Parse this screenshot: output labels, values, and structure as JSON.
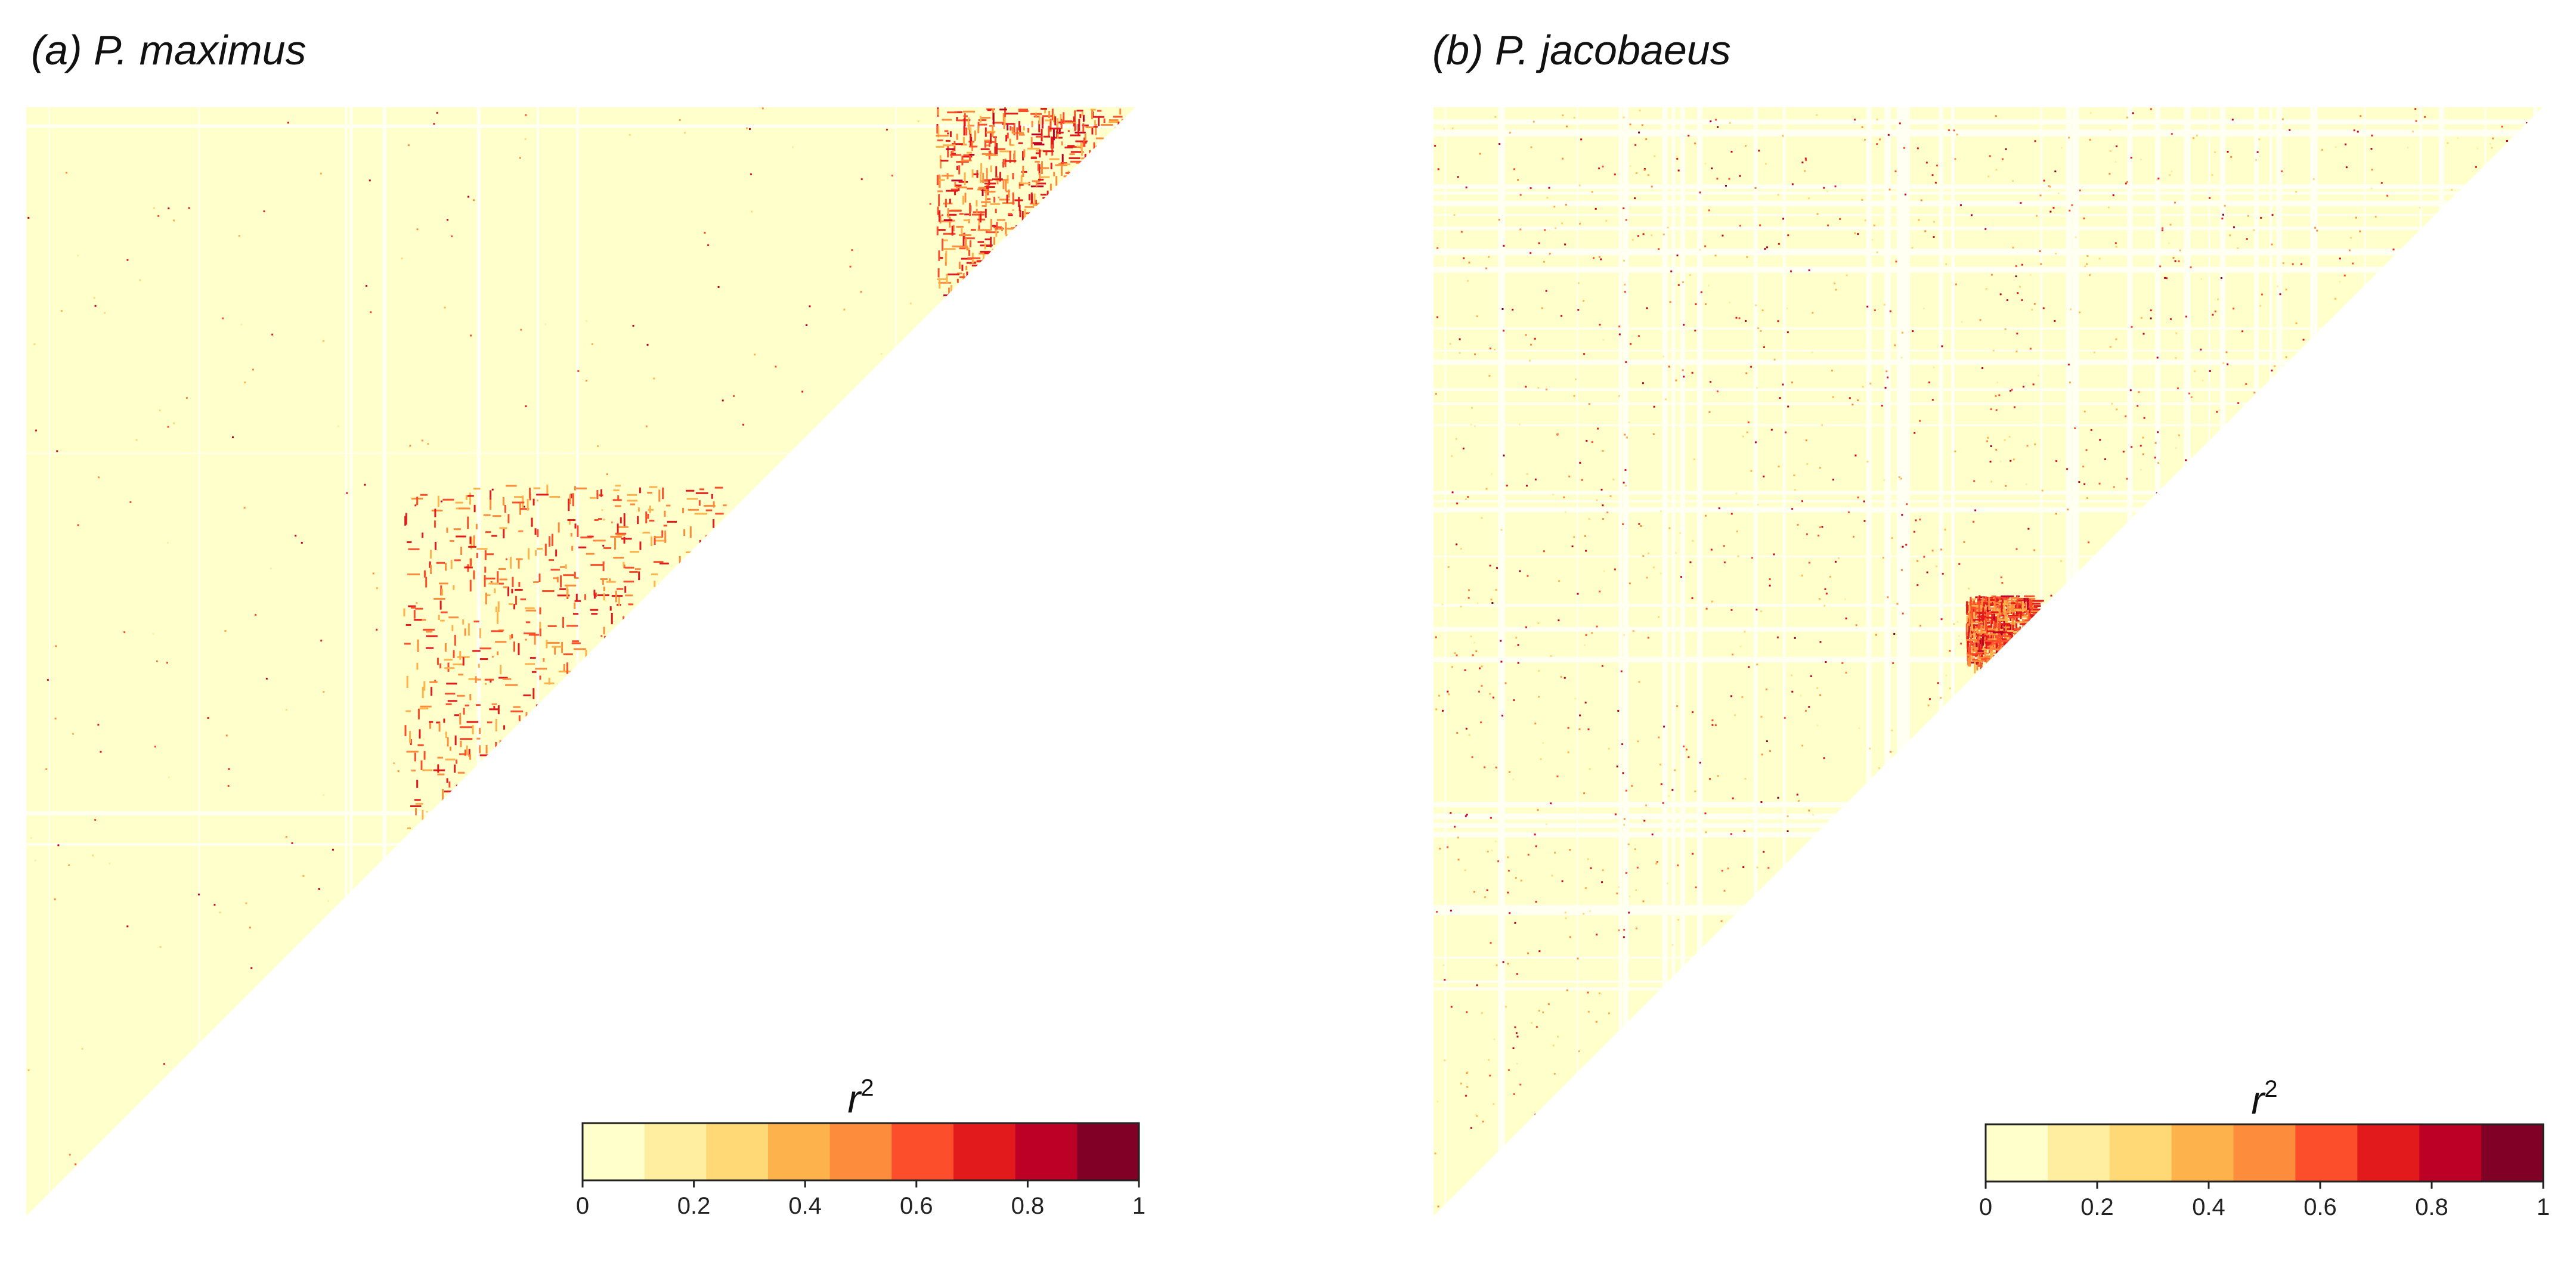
{
  "panels": {
    "a": {
      "title": "(a) P. maximus"
    },
    "b": {
      "title": "(b) P. jacobaeus"
    }
  },
  "colorbar": {
    "title": "r",
    "superscript": "2",
    "ticks": [
      "0",
      "0.2",
      "0.4",
      "0.6",
      "0.8",
      "1"
    ],
    "colors": [
      "#FFFFCC",
      "#FFEDA0",
      "#FED976",
      "#FEB24C",
      "#FD8D3C",
      "#FC4E2A",
      "#E31A1C",
      "#BD0026",
      "#800026"
    ]
  },
  "chart_data": [
    {
      "type": "heatmap",
      "shape": "upper-triangular",
      "title": "(a) P. maximus",
      "colorbar_title": "r²",
      "range": [
        0,
        1
      ],
      "ticks": [
        0,
        0.2,
        0.4,
        0.6,
        0.8,
        1
      ],
      "background_level": 0.05,
      "hotspots": [
        {
          "row_range": [
            0.0,
            0.17
          ],
          "col_range": [
            0.82,
            1.0
          ],
          "level": 0.7
        },
        {
          "row_range": [
            0.34,
            0.66
          ],
          "col_range": [
            0.34,
            0.64
          ],
          "level": 0.65
        }
      ]
    },
    {
      "type": "heatmap",
      "shape": "upper-triangular",
      "title": "(b) P. jacobaeus",
      "colorbar_title": "r²",
      "range": [
        0,
        1
      ],
      "ticks": [
        0,
        0.2,
        0.4,
        0.6,
        0.8,
        1
      ],
      "background_level": 0.08,
      "hotspots": [
        {
          "row_range": [
            0.44,
            0.5
          ],
          "col_range": [
            0.48,
            0.54
          ],
          "level": 0.7
        }
      ]
    }
  ]
}
